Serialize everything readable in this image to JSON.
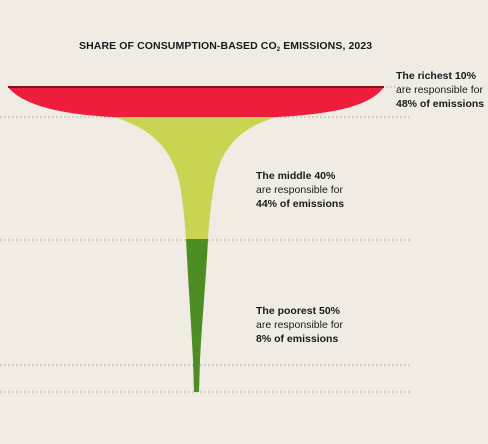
{
  "chart_data": {
    "type": "funnel",
    "title_main": "SHARE OF CONSUMPTION-BASED CO",
    "title_sub": "2",
    "title_tail": " EMISSIONS, 2023",
    "series": [
      {
        "group": "The richest 10%",
        "share": 48,
        "line1": "The richest 10%",
        "line2": "are responsible for",
        "line3": "48% of emissions",
        "color": "#ee1d3c"
      },
      {
        "group": "The middle 40%",
        "share": 44,
        "line1": "The middle 40%",
        "line2": "are responsible for",
        "line3": "44% of emissions",
        "color": "#c9d452"
      },
      {
        "group": "The poorest 50%",
        "share": 8,
        "line1": "The poorest 50%",
        "line2": "are responsible for",
        "line3": "8% of emissions",
        "color": "#4e8c24"
      }
    ]
  }
}
